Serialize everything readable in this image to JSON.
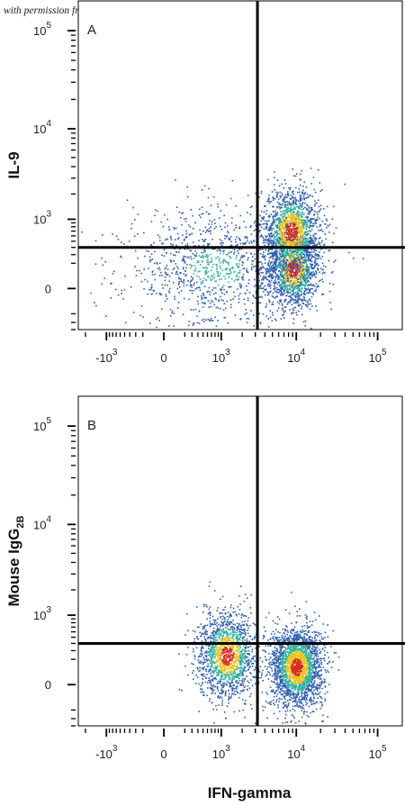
{
  "watermark": "with permission from R&D Systems",
  "colors": {
    "low": "#2f5fb0",
    "mid": "#2fb2a0",
    "high": "#e8c520",
    "peak": "#d92a1a",
    "axis": "#000000"
  },
  "chart_data": [
    {
      "type": "scatter",
      "panel_label": "A",
      "xlabel": "",
      "ylabel": "IL-9",
      "x_scale": "biexponential",
      "y_scale": "biexponential",
      "x_ticks": [
        {
          "value": -1000,
          "base": "-10",
          "exp": "3"
        },
        {
          "value": 0,
          "base": "0",
          "exp": ""
        },
        {
          "value": 1000,
          "base": "10",
          "exp": "3"
        },
        {
          "value": 10000,
          "base": "10",
          "exp": "4"
        },
        {
          "value": 100000,
          "base": "10",
          "exp": "5"
        }
      ],
      "y_ticks": [
        {
          "value": 0,
          "base": "0",
          "exp": ""
        },
        {
          "value": 1000,
          "base": "10",
          "exp": "3"
        },
        {
          "value": 10000,
          "base": "10",
          "exp": "4"
        },
        {
          "value": 100000,
          "base": "10",
          "exp": "5"
        }
      ],
      "quadrant_gates": {
        "x": 3200,
        "y": 400
      },
      "populations": [
        {
          "name": "",
          "x_center": 9000,
          "y_center": 150,
          "count": 1400
        },
        {
          "name": "",
          "x_center": 8500,
          "y_center": 700,
          "count": 1500
        },
        {
          "name": "",
          "x_center": 800,
          "y_center": 150,
          "count": 1100
        }
      ]
    },
    {
      "type": "scatter",
      "panel_label": "B",
      "xlabel": "IFN-gamma",
      "ylabel": "Mouse IgG",
      "ylabel_sub": "2B",
      "x_scale": "biexponential",
      "y_scale": "biexponential",
      "x_ticks": [
        {
          "value": -1000,
          "base": "-10",
          "exp": "3"
        },
        {
          "value": 0,
          "base": "0",
          "exp": ""
        },
        {
          "value": 1000,
          "base": "10",
          "exp": "3"
        },
        {
          "value": 10000,
          "base": "10",
          "exp": "4"
        },
        {
          "value": 100000,
          "base": "10",
          "exp": "5"
        }
      ],
      "y_ticks": [
        {
          "value": 0,
          "base": "0",
          "exp": ""
        },
        {
          "value": 1000,
          "base": "10",
          "exp": "3"
        },
        {
          "value": 10000,
          "base": "10",
          "exp": "4"
        },
        {
          "value": 100000,
          "base": "10",
          "exp": "5"
        }
      ],
      "quadrant_gates": {
        "x": 3200,
        "y": 400
      },
      "populations": [
        {
          "name": "",
          "x_center": 10000,
          "y_center": 130,
          "count": 2300
        },
        {
          "name": "",
          "x_center": 1200,
          "y_center": 250,
          "count": 1500
        }
      ]
    }
  ]
}
